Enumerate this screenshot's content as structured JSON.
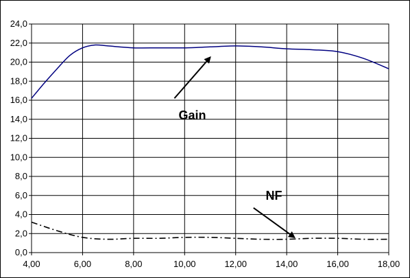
{
  "chart_data": {
    "type": "line",
    "title": "",
    "xlabel": "",
    "ylabel": "",
    "xlim": [
      4,
      18
    ],
    "ylim": [
      0,
      24
    ],
    "grid": true,
    "x_ticks": [
      "4,00",
      "6,00",
      "8,00",
      "10,00",
      "12,00",
      "14,00",
      "16,00",
      "18,00"
    ],
    "y_ticks": [
      "0,0",
      "2,0",
      "4,0",
      "6,0",
      "8,0",
      "10,0",
      "12,0",
      "14,0",
      "16,0",
      "18,0",
      "20,0",
      "22,0",
      "24,0"
    ],
    "series": [
      {
        "name": "Gain",
        "style": "solid",
        "color": "#000080",
        "x": [
          4.0,
          4.5,
          5.0,
          5.5,
          6.0,
          6.5,
          7.0,
          8.0,
          9.0,
          10.0,
          11.0,
          12.0,
          13.0,
          14.0,
          15.0,
          16.0,
          17.0,
          18.0
        ],
        "y": [
          16.2,
          17.8,
          19.3,
          20.7,
          21.5,
          21.8,
          21.7,
          21.5,
          21.5,
          21.5,
          21.6,
          21.7,
          21.6,
          21.4,
          21.3,
          21.1,
          20.4,
          19.3
        ]
      },
      {
        "name": "NF",
        "style": "dash-dot",
        "color": "#000000",
        "x": [
          4.0,
          5.0,
          6.0,
          7.0,
          8.0,
          9.0,
          10.0,
          11.0,
          12.0,
          13.0,
          14.0,
          15.0,
          16.0,
          17.0,
          18.0
        ],
        "y": [
          3.2,
          2.3,
          1.6,
          1.4,
          1.5,
          1.5,
          1.6,
          1.6,
          1.5,
          1.4,
          1.4,
          1.5,
          1.5,
          1.4,
          1.4
        ]
      }
    ],
    "annotations": [
      {
        "text": "Gain",
        "label_x": 10.3,
        "label_y": 14.4,
        "arrow_from": [
          9.6,
          16.2
        ],
        "arrow_to": [
          11.0,
          20.5
        ]
      },
      {
        "text": "NF",
        "label_x": 13.5,
        "label_y": 6.0,
        "arrow_from": [
          12.7,
          4.7
        ],
        "arrow_to": [
          14.3,
          1.6
        ]
      }
    ]
  }
}
